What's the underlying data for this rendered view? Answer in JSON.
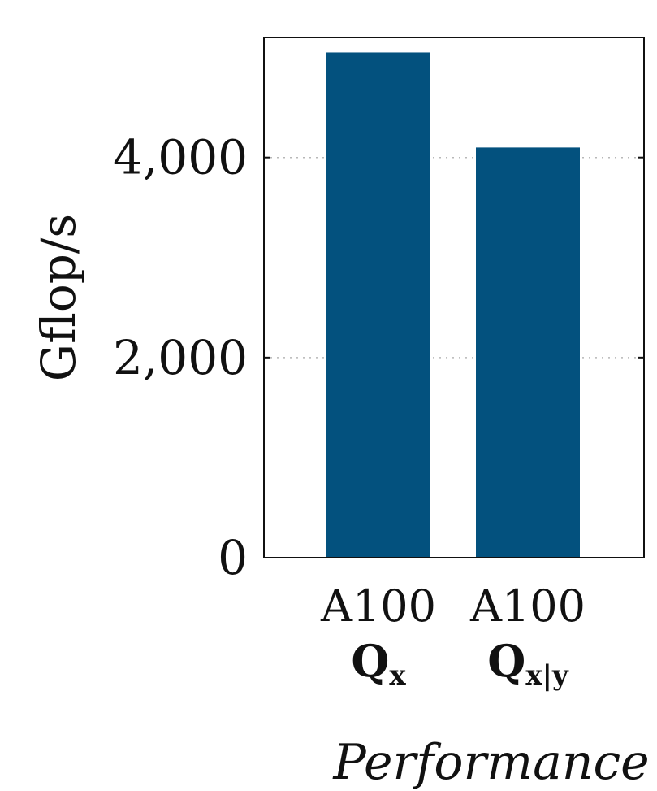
{
  "chart_data": {
    "type": "bar",
    "categories": [
      {
        "line1": "A100",
        "line2": "Q",
        "sub": "x"
      },
      {
        "line1": "A100",
        "line2": "Q",
        "sub": "x|y"
      }
    ],
    "values": [
      5050,
      4100
    ],
    "xlabel": "Performance",
    "ylabel": "Gflop/s",
    "ylim": [
      0,
      5200
    ],
    "yticks": [
      0,
      2000,
      4000
    ],
    "ytick_labels": [
      "0",
      "2,000",
      "4,000"
    ],
    "grid": true,
    "bar_color": "#03517e"
  }
}
